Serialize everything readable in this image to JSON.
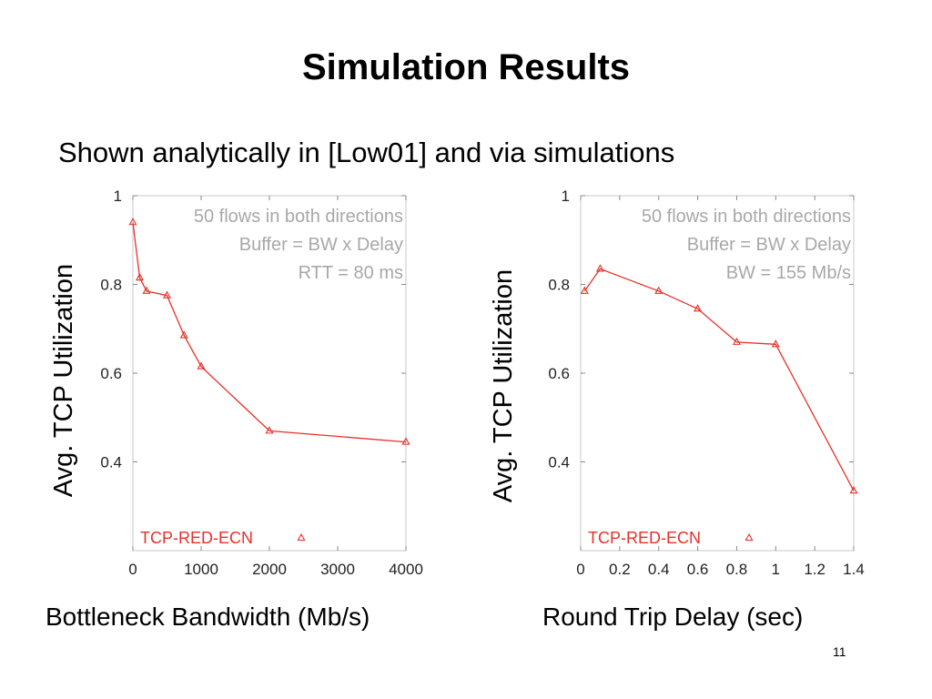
{
  "slide": {
    "title": "Simulation Results",
    "subtitle": "Shown analytically in [Low01] and via simulations",
    "page_number": "11"
  },
  "colors": {
    "series": "#e8302a",
    "annotation": "#a8a8a8",
    "frame": "#c8c8c8"
  },
  "chart_data": [
    {
      "type": "line",
      "xlabel": "Bottleneck Bandwidth (Mb/s)",
      "ylabel": "Avg. TCP Utilization",
      "xlim": [
        0,
        4000
      ],
      "ylim": [
        0.2,
        1.0
      ],
      "xticks": [
        0,
        1000,
        2000,
        3000,
        4000
      ],
      "xtick_labels": [
        "0",
        "1000",
        "2000",
        "3000",
        "4000"
      ],
      "yticks": [
        0.4,
        0.6,
        0.8,
        1.0
      ],
      "ytick_labels": [
        "0.4",
        "0.6",
        "0.8",
        "1"
      ],
      "grid": false,
      "annotations": [
        "50 flows in both directions",
        "Buffer = BW x Delay",
        "RTT = 80 ms"
      ],
      "legend_position": "bottom",
      "series": [
        {
          "name": "TCP-RED-ECN",
          "marker": "triangle",
          "x": [
            0,
            100,
            200,
            500,
            750,
            1000,
            2000,
            4000
          ],
          "y": [
            0.94,
            0.815,
            0.785,
            0.775,
            0.685,
            0.615,
            0.47,
            0.445
          ]
        }
      ]
    },
    {
      "type": "line",
      "xlabel": "Round Trip Delay (sec)",
      "ylabel": "Avg. TCP Utilization",
      "xlim": [
        0,
        1.4
      ],
      "ylim": [
        0.2,
        1.0
      ],
      "xticks": [
        0,
        0.2,
        0.4,
        0.6,
        0.8,
        1.0,
        1.2,
        1.4
      ],
      "xtick_labels": [
        "0",
        "0.2",
        "0.4",
        "0.6",
        "0.8",
        "1",
        "1.2",
        "1.4"
      ],
      "yticks": [
        0.4,
        0.6,
        0.8,
        1.0
      ],
      "ytick_labels": [
        "0.4",
        "0.6",
        "0.8",
        "1"
      ],
      "grid": false,
      "annotations": [
        "50 flows in both directions",
        "Buffer = BW x Delay",
        "BW = 155 Mb/s"
      ],
      "legend_position": "bottom",
      "series": [
        {
          "name": "TCP-RED-ECN",
          "marker": "triangle",
          "x": [
            0.02,
            0.1,
            0.4,
            0.6,
            0.8,
            1.0,
            1.4
          ],
          "y": [
            0.785,
            0.835,
            0.785,
            0.745,
            0.67,
            0.665,
            0.335
          ]
        }
      ]
    }
  ]
}
